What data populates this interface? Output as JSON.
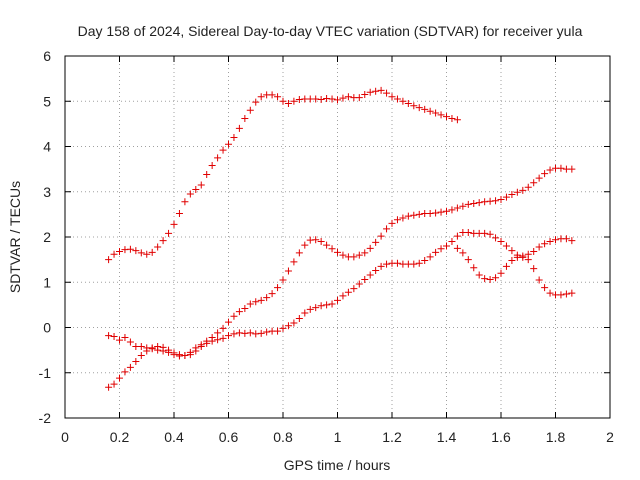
{
  "chart_data": {
    "type": "scatter",
    "title": "Day 158 of 2024, Sidereal Day-to-day VTEC variation (SDTVAR) for receiver yula",
    "xlabel": "GPS time / hours",
    "ylabel": "SDTVAR / TECUs",
    "xlim": [
      0,
      2
    ],
    "ylim": [
      -2,
      6
    ],
    "xticks": [
      0,
      0.2,
      0.4,
      0.6,
      0.8,
      1,
      1.2,
      1.4,
      1.6,
      1.8,
      2
    ],
    "xtick_labels": [
      "0",
      "0.2",
      "0.4",
      "0.6",
      "0.8",
      "1",
      "1.2",
      "1.4",
      "1.6",
      "1.8",
      "2"
    ],
    "yticks": [
      -2,
      -1,
      0,
      1,
      2,
      3,
      4,
      5,
      6
    ],
    "ytick_labels": [
      "-2",
      "-1",
      "0",
      "1",
      "2",
      "3",
      "4",
      "5",
      "6"
    ],
    "grid": true,
    "marker": "+",
    "color": "#e00000",
    "series": [
      {
        "name": "series-1",
        "points": [
          [
            0.16,
            1.5
          ],
          [
            0.18,
            1.62
          ],
          [
            0.2,
            1.68
          ],
          [
            0.22,
            1.72
          ],
          [
            0.24,
            1.73
          ],
          [
            0.26,
            1.7
          ],
          [
            0.28,
            1.65
          ],
          [
            0.3,
            1.62
          ],
          [
            0.32,
            1.66
          ],
          [
            0.34,
            1.78
          ],
          [
            0.36,
            1.92
          ],
          [
            0.38,
            2.08
          ],
          [
            0.4,
            2.28
          ],
          [
            0.42,
            2.52
          ],
          [
            0.44,
            2.78
          ],
          [
            0.46,
            2.95
          ],
          [
            0.48,
            3.05
          ],
          [
            0.5,
            3.15
          ],
          [
            0.52,
            3.38
          ],
          [
            0.54,
            3.58
          ],
          [
            0.56,
            3.75
          ],
          [
            0.58,
            3.92
          ],
          [
            0.6,
            4.05
          ],
          [
            0.62,
            4.2
          ],
          [
            0.64,
            4.4
          ],
          [
            0.66,
            4.62
          ],
          [
            0.68,
            4.8
          ],
          [
            0.7,
            4.98
          ],
          [
            0.72,
            5.1
          ],
          [
            0.74,
            5.14
          ],
          [
            0.76,
            5.14
          ],
          [
            0.78,
            5.1
          ],
          [
            0.8,
            5.0
          ],
          [
            0.82,
            4.95
          ],
          [
            0.84,
            5.0
          ],
          [
            0.86,
            5.04
          ],
          [
            0.88,
            5.05
          ],
          [
            0.9,
            5.05
          ],
          [
            0.92,
            5.05
          ],
          [
            0.94,
            5.04
          ],
          [
            0.96,
            5.06
          ],
          [
            0.98,
            5.05
          ],
          [
            1.0,
            5.03
          ],
          [
            1.02,
            5.07
          ],
          [
            1.04,
            5.1
          ],
          [
            1.06,
            5.08
          ],
          [
            1.08,
            5.08
          ],
          [
            1.1,
            5.15
          ],
          [
            1.12,
            5.2
          ],
          [
            1.14,
            5.22
          ],
          [
            1.16,
            5.24
          ],
          [
            1.18,
            5.18
          ],
          [
            1.2,
            5.1
          ],
          [
            1.22,
            5.05
          ],
          [
            1.24,
            5.0
          ],
          [
            1.26,
            4.95
          ],
          [
            1.28,
            4.9
          ],
          [
            1.3,
            4.86
          ],
          [
            1.32,
            4.82
          ],
          [
            1.34,
            4.78
          ],
          [
            1.36,
            4.74
          ],
          [
            1.38,
            4.7
          ],
          [
            1.4,
            4.66
          ],
          [
            1.42,
            4.62
          ],
          [
            1.44,
            4.59
          ]
        ]
      },
      {
        "name": "series-2",
        "points": [
          [
            0.16,
            -0.18
          ],
          [
            0.18,
            -0.2
          ],
          [
            0.2,
            -0.28
          ],
          [
            0.22,
            -0.22
          ],
          [
            0.24,
            -0.32
          ],
          [
            0.26,
            -0.42
          ],
          [
            0.28,
            -0.42
          ],
          [
            0.3,
            -0.45
          ],
          [
            0.32,
            -0.47
          ],
          [
            0.34,
            -0.5
          ],
          [
            0.36,
            -0.52
          ],
          [
            0.38,
            -0.55
          ],
          [
            0.4,
            -0.6
          ],
          [
            0.42,
            -0.63
          ],
          [
            0.44,
            -0.62
          ],
          [
            0.46,
            -0.55
          ],
          [
            0.48,
            -0.45
          ],
          [
            0.5,
            -0.38
          ],
          [
            0.52,
            -0.3
          ],
          [
            0.54,
            -0.22
          ],
          [
            0.56,
            -0.12
          ],
          [
            0.58,
            -0.02
          ],
          [
            0.6,
            0.12
          ],
          [
            0.62,
            0.25
          ],
          [
            0.64,
            0.35
          ],
          [
            0.66,
            0.42
          ],
          [
            0.68,
            0.52
          ],
          [
            0.7,
            0.57
          ],
          [
            0.72,
            0.6
          ],
          [
            0.74,
            0.66
          ],
          [
            0.76,
            0.75
          ],
          [
            0.78,
            0.88
          ],
          [
            0.8,
            1.05
          ],
          [
            0.82,
            1.25
          ],
          [
            0.84,
            1.45
          ],
          [
            0.86,
            1.65
          ],
          [
            0.88,
            1.82
          ],
          [
            0.9,
            1.93
          ],
          [
            0.92,
            1.94
          ],
          [
            0.94,
            1.9
          ],
          [
            0.96,
            1.82
          ],
          [
            0.98,
            1.74
          ],
          [
            1.0,
            1.66
          ],
          [
            1.02,
            1.6
          ],
          [
            1.04,
            1.56
          ],
          [
            1.06,
            1.56
          ],
          [
            1.08,
            1.6
          ],
          [
            1.1,
            1.65
          ],
          [
            1.12,
            1.75
          ],
          [
            1.14,
            1.88
          ],
          [
            1.16,
            2.02
          ],
          [
            1.18,
            2.18
          ],
          [
            1.2,
            2.3
          ],
          [
            1.22,
            2.38
          ],
          [
            1.24,
            2.42
          ],
          [
            1.26,
            2.46
          ],
          [
            1.28,
            2.48
          ],
          [
            1.3,
            2.5
          ],
          [
            1.32,
            2.52
          ],
          [
            1.34,
            2.52
          ],
          [
            1.36,
            2.53
          ],
          [
            1.38,
            2.55
          ],
          [
            1.4,
            2.57
          ],
          [
            1.42,
            2.6
          ],
          [
            1.44,
            2.64
          ],
          [
            1.46,
            2.68
          ],
          [
            1.48,
            2.72
          ],
          [
            1.5,
            2.74
          ],
          [
            1.52,
            2.76
          ],
          [
            1.54,
            2.78
          ],
          [
            1.56,
            2.79
          ],
          [
            1.58,
            2.8
          ],
          [
            1.6,
            2.83
          ],
          [
            1.62,
            2.88
          ],
          [
            1.64,
            2.94
          ],
          [
            1.66,
            2.99
          ],
          [
            1.68,
            3.03
          ],
          [
            1.7,
            3.1
          ],
          [
            1.72,
            3.2
          ],
          [
            1.74,
            3.3
          ],
          [
            1.76,
            3.4
          ],
          [
            1.78,
            3.48
          ],
          [
            1.8,
            3.52
          ],
          [
            1.82,
            3.52
          ],
          [
            1.84,
            3.5
          ],
          [
            1.86,
            3.5
          ]
        ]
      },
      {
        "name": "series-3",
        "points": [
          [
            0.16,
            -1.32
          ],
          [
            0.18,
            -1.25
          ],
          [
            0.2,
            -1.12
          ],
          [
            0.22,
            -0.98
          ],
          [
            0.24,
            -0.88
          ],
          [
            0.26,
            -0.75
          ],
          [
            0.28,
            -0.62
          ],
          [
            0.3,
            -0.52
          ],
          [
            0.32,
            -0.45
          ],
          [
            0.34,
            -0.42
          ],
          [
            0.36,
            -0.44
          ],
          [
            0.38,
            -0.5
          ],
          [
            0.4,
            -0.56
          ],
          [
            0.42,
            -0.6
          ],
          [
            0.44,
            -0.62
          ],
          [
            0.46,
            -0.6
          ],
          [
            0.48,
            -0.52
          ],
          [
            0.5,
            -0.42
          ],
          [
            0.52,
            -0.35
          ],
          [
            0.54,
            -0.3
          ],
          [
            0.56,
            -0.27
          ],
          [
            0.58,
            -0.24
          ],
          [
            0.6,
            -0.18
          ],
          [
            0.62,
            -0.14
          ],
          [
            0.64,
            -0.12
          ],
          [
            0.66,
            -0.13
          ],
          [
            0.68,
            -0.12
          ],
          [
            0.7,
            -0.14
          ],
          [
            0.72,
            -0.13
          ],
          [
            0.74,
            -0.1
          ],
          [
            0.76,
            -0.08
          ],
          [
            0.78,
            -0.08
          ],
          [
            0.8,
            -0.02
          ],
          [
            0.82,
            0.04
          ],
          [
            0.84,
            0.1
          ],
          [
            0.86,
            0.2
          ],
          [
            0.88,
            0.32
          ],
          [
            0.9,
            0.4
          ],
          [
            0.92,
            0.44
          ],
          [
            0.94,
            0.48
          ],
          [
            0.96,
            0.5
          ],
          [
            0.98,
            0.52
          ],
          [
            1.0,
            0.6
          ],
          [
            1.02,
            0.7
          ],
          [
            1.04,
            0.78
          ],
          [
            1.06,
            0.86
          ],
          [
            1.08,
            0.96
          ],
          [
            1.1,
            1.06
          ],
          [
            1.12,
            1.16
          ],
          [
            1.14,
            1.26
          ],
          [
            1.16,
            1.35
          ],
          [
            1.18,
            1.4
          ],
          [
            1.2,
            1.42
          ],
          [
            1.22,
            1.42
          ],
          [
            1.24,
            1.4
          ],
          [
            1.26,
            1.4
          ],
          [
            1.28,
            1.4
          ],
          [
            1.3,
            1.42
          ],
          [
            1.32,
            1.48
          ],
          [
            1.34,
            1.56
          ],
          [
            1.36,
            1.66
          ],
          [
            1.38,
            1.74
          ],
          [
            1.4,
            1.8
          ],
          [
            1.42,
            1.9
          ],
          [
            1.44,
            2.02
          ],
          [
            1.46,
            2.1
          ],
          [
            1.48,
            2.1
          ],
          [
            1.5,
            2.08
          ],
          [
            1.52,
            2.08
          ],
          [
            1.54,
            2.08
          ],
          [
            1.56,
            2.06
          ],
          [
            1.58,
            1.98
          ],
          [
            1.6,
            1.9
          ],
          [
            1.62,
            1.8
          ],
          [
            1.64,
            1.7
          ],
          [
            1.66,
            1.6
          ],
          [
            1.68,
            1.55
          ],
          [
            1.7,
            1.5
          ],
          [
            1.72,
            1.3
          ],
          [
            1.74,
            1.05
          ],
          [
            1.76,
            0.88
          ],
          [
            1.78,
            0.76
          ],
          [
            1.8,
            0.72
          ],
          [
            1.82,
            0.72
          ],
          [
            1.84,
            0.74
          ],
          [
            1.86,
            0.76
          ]
        ]
      },
      {
        "name": "series-4",
        "points": [
          [
            1.44,
            1.75
          ],
          [
            1.46,
            1.65
          ],
          [
            1.48,
            1.5
          ],
          [
            1.5,
            1.32
          ],
          [
            1.52,
            1.16
          ],
          [
            1.54,
            1.08
          ],
          [
            1.56,
            1.06
          ],
          [
            1.58,
            1.1
          ],
          [
            1.6,
            1.2
          ],
          [
            1.62,
            1.35
          ],
          [
            1.64,
            1.48
          ],
          [
            1.66,
            1.55
          ],
          [
            1.68,
            1.58
          ],
          [
            1.7,
            1.62
          ],
          [
            1.72,
            1.68
          ],
          [
            1.74,
            1.78
          ],
          [
            1.76,
            1.85
          ],
          [
            1.78,
            1.9
          ],
          [
            1.8,
            1.94
          ],
          [
            1.82,
            1.96
          ],
          [
            1.84,
            1.96
          ],
          [
            1.86,
            1.92
          ]
        ]
      }
    ]
  }
}
